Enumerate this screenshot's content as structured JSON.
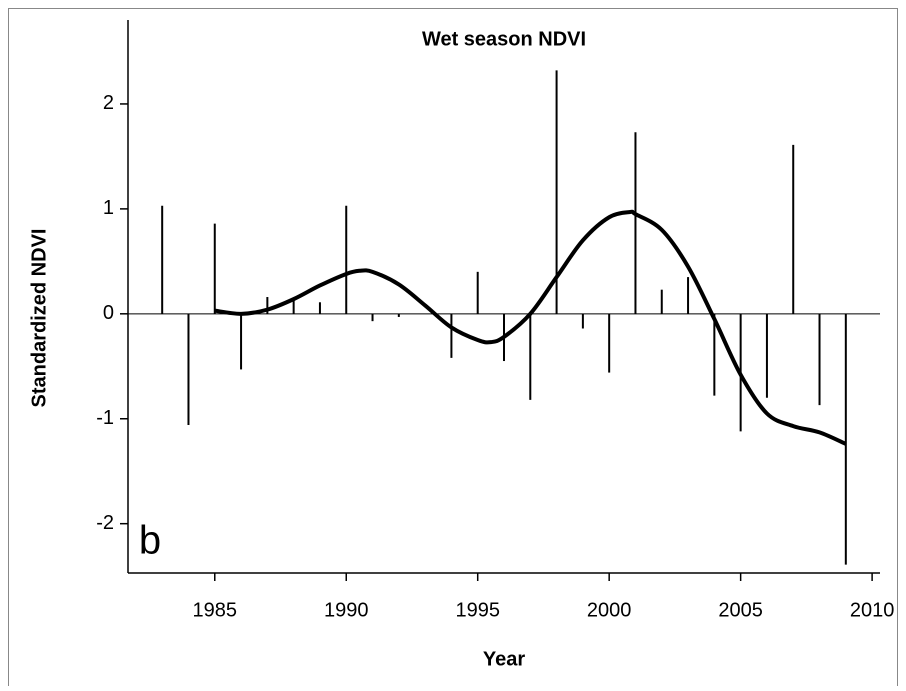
{
  "chart_data": {
    "type": "bar",
    "title": "Wet season NDVI",
    "x_label": "Year",
    "y_label": "Standardized NDVI",
    "annotation": "b",
    "x": [
      1983,
      1984,
      1985,
      1986,
      1987,
      1988,
      1989,
      1990,
      1991,
      1992,
      1993,
      1994,
      1995,
      1996,
      1997,
      1998,
      1999,
      2000,
      2001,
      2002,
      2003,
      2004,
      2005,
      2006,
      2007,
      2008,
      2009
    ],
    "values": [
      1.03,
      -1.06,
      0.86,
      -0.53,
      0.16,
      0.13,
      0.11,
      1.03,
      -0.07,
      -0.03,
      0,
      -0.42,
      0.4,
      -0.45,
      -0.82,
      2.32,
      -0.14,
      -0.56,
      1.73,
      0.23,
      0.35,
      -0.78,
      -1.12,
      -0.8,
      1.61,
      -0.87,
      -2.39
    ],
    "color": "#000000",
    "smooth": {
      "x": [
        1985,
        1986,
        1987,
        1988,
        1989,
        1990,
        1990.5,
        1991,
        1992,
        1993,
        1994,
        1995,
        1995.5,
        1996,
        1997,
        1998,
        1999,
        2000,
        2000.8,
        2001,
        2002,
        2003,
        2004,
        2005,
        2006,
        2007,
        2008,
        2009
      ],
      "values": [
        0.03,
        0.0,
        0.04,
        0.14,
        0.27,
        0.38,
        0.41,
        0.4,
        0.28,
        0.08,
        -0.13,
        -0.25,
        -0.27,
        -0.22,
        0.0,
        0.35,
        0.7,
        0.92,
        0.97,
        0.95,
        0.8,
        0.45,
        -0.05,
        -0.58,
        -0.95,
        -1.07,
        -1.13,
        -1.24
      ]
    },
    "xlim": [
      1981.7,
      2010.3
    ],
    "xticks": [
      1985,
      1990,
      1995,
      2000,
      2005,
      2010
    ],
    "ylim": [
      -2.47,
      2.8
    ],
    "yticks": [
      -2,
      -1,
      0,
      1,
      2
    ]
  }
}
